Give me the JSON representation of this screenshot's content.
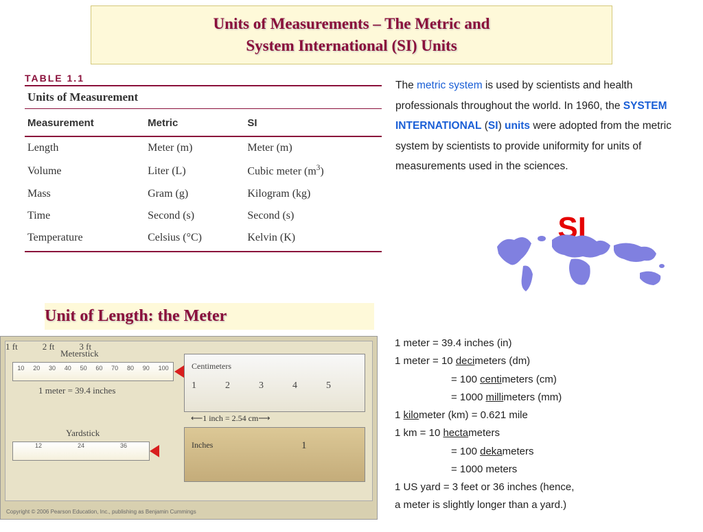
{
  "title": {
    "line1": "Units of Measurements – The Metric and",
    "line2": "System International (SI) Units"
  },
  "table": {
    "label": "TABLE 1.1",
    "caption": "Units of Measurement",
    "columns": [
      "Measurement",
      "Metric",
      "SI"
    ],
    "rows": [
      [
        "Length",
        "Meter (m)",
        "Meter (m)"
      ],
      [
        "Volume",
        "Liter (L)",
        "Cubic meter (m³)"
      ],
      [
        "Mass",
        "Gram (g)",
        "Kilogram (kg)"
      ],
      [
        "Time",
        "Second (s)",
        "Second (s)"
      ],
      [
        "Temperature",
        "Celsius (°C)",
        "Kelvin (K)"
      ]
    ]
  },
  "paragraph": {
    "p1a": "The ",
    "metric": "metric system",
    "p1b": " is used by scientists and health professionals throughout the world. In 1960, the ",
    "si_full": "SYSTEM INTERNATIONAL",
    "si_paren_open": " (",
    "si_abbr": "SI",
    "si_paren_close": ") ",
    "units": "units",
    "p1c": " were adopted from the metric system by scientists to provide uniformity for units of measurements used in the sciences."
  },
  "si_logo": "SI",
  "subheading": "Unit of Length: the Meter",
  "figure": {
    "meterstick_label": "Meterstick",
    "meterstick_ticks": [
      "10",
      "20",
      "30",
      "40",
      "50",
      "60",
      "70",
      "80",
      "90",
      "100"
    ],
    "meter_equation": "1 meter  =  39.4 inches",
    "yardstick_label": "Yardstick",
    "yardstick_ticks": [
      "12",
      "24",
      "36"
    ],
    "ft_labels": [
      "1 ft",
      "2 ft",
      "3 ft"
    ],
    "cm_label": "Centimeters",
    "cm_nums": [
      "1",
      "2",
      "3",
      "4",
      "5"
    ],
    "inch_label": "Inches",
    "inch_num": "1",
    "inch_eq": "1 inch  =  2.54 cm",
    "copyright": "Copyright © 2006 Pearson Education, Inc., publishing as Benjamin Cummings"
  },
  "conversions": {
    "lines": [
      {
        "pre": "1 meter  =  39.4 inches (in)"
      },
      {
        "pre": "1 meter  =  10 ",
        "u": "deci",
        "post": "meters (dm)"
      },
      {
        "indent": true,
        "pre": "=  100 ",
        "u": "centi",
        "post": "meters (cm)"
      },
      {
        "indent": true,
        "pre": "=  1000 ",
        "u": "milli",
        "post": "meters (mm)"
      },
      {
        "pre": "1 ",
        "u": "kilo",
        "post": "meter (km)  =  0.621 mile"
      },
      {
        "pre": "1 km  =  10 ",
        "u": "hecta",
        "post": "meters"
      },
      {
        "indent": true,
        "pre": "=  100 ",
        "u": "deka",
        "post": "meters"
      },
      {
        "indent": true,
        "pre": "=  1000 meters"
      },
      {
        "pre": "1 US yard  =  3 feet or 36 inches (hence,"
      },
      {
        "pre": "a meter is slightly longer than a yard.)"
      }
    ]
  },
  "colors": {
    "accent": "#8a0f3a",
    "banner_bg": "#fef9d9",
    "link_blue": "#1a5fd6",
    "si_red": "#e50000",
    "map_fill": "#8080e0"
  }
}
